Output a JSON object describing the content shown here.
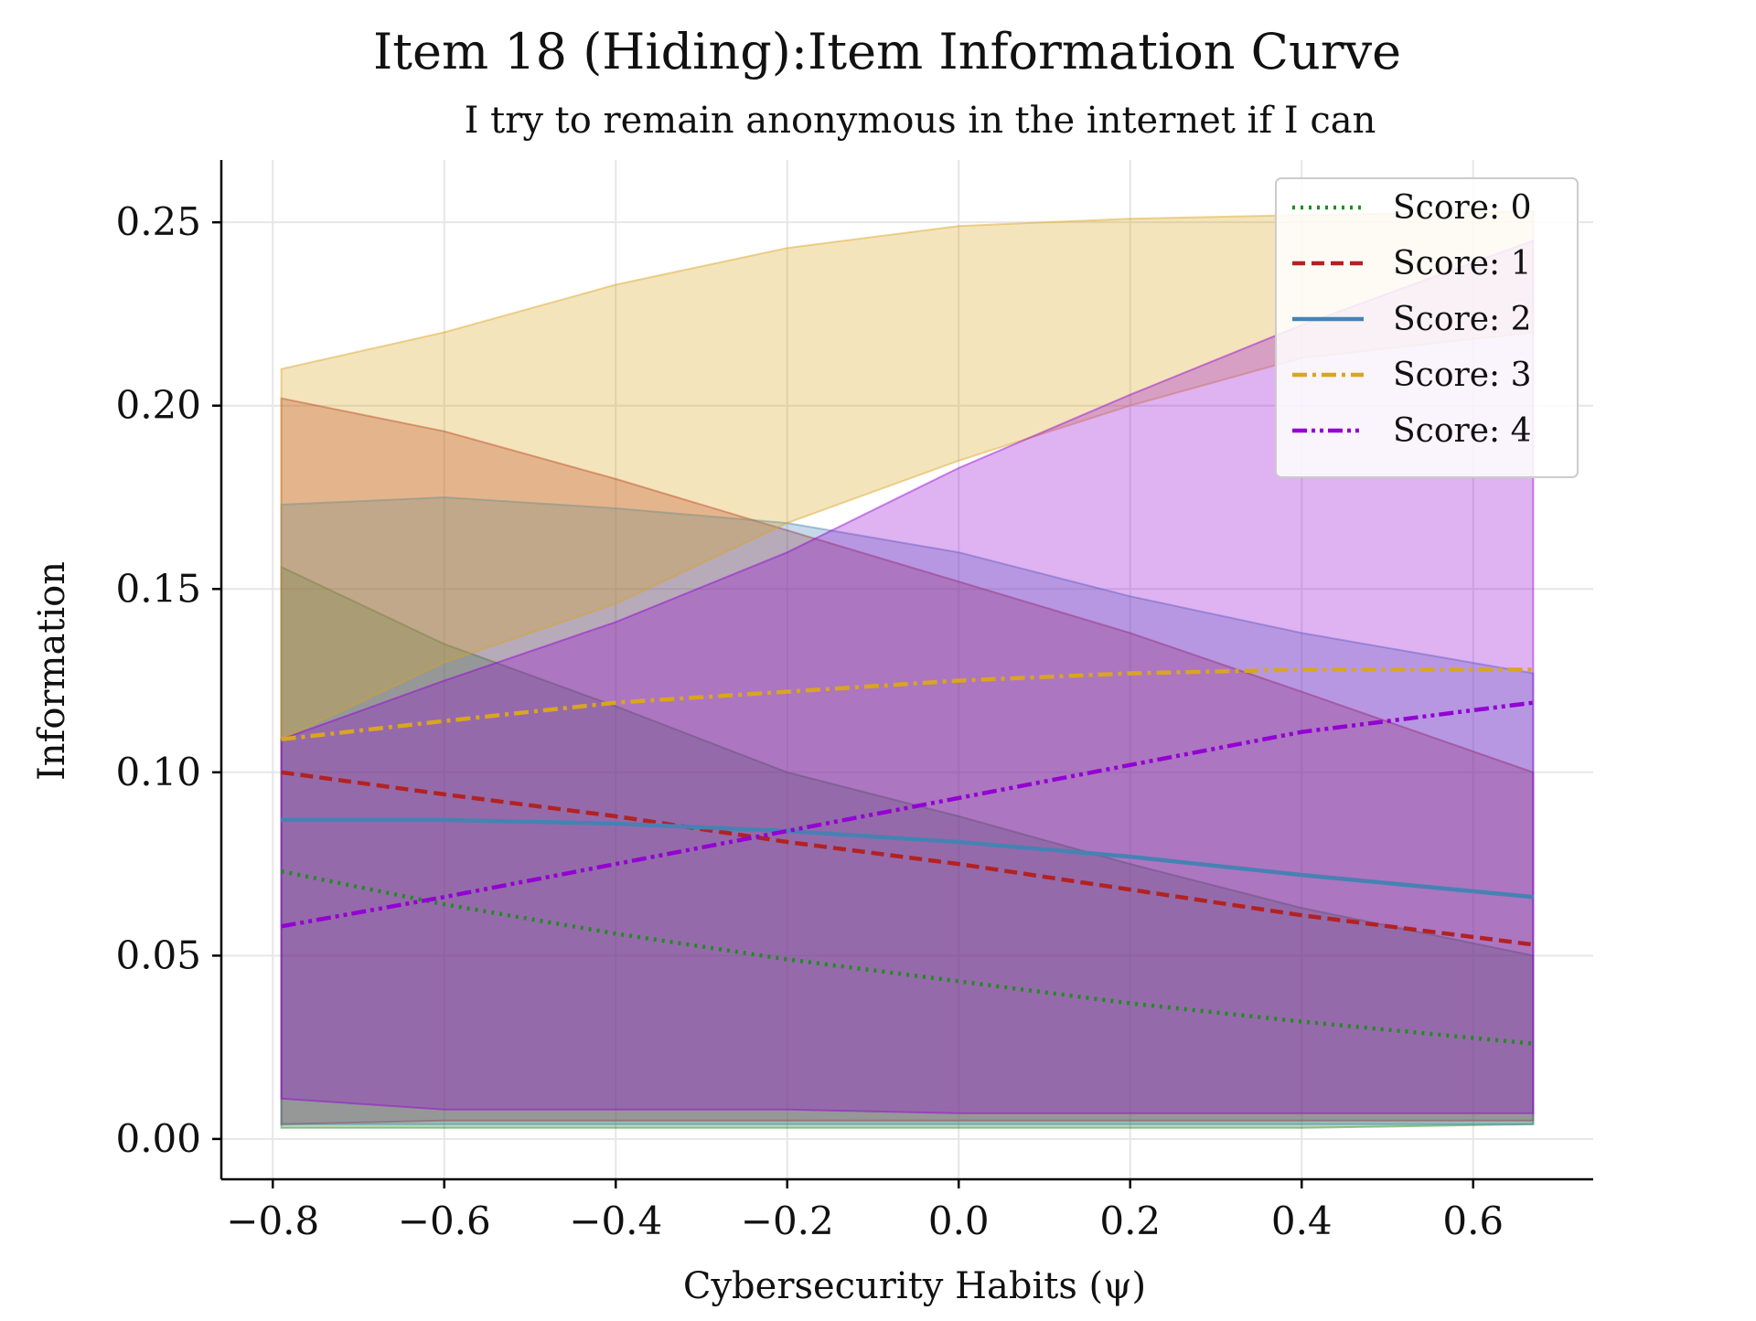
{
  "chart_data": {
    "type": "line",
    "title": "Item 18 (Hiding):Item Information Curve",
    "subtitle": "I try to remain anonymous in the internet if I can",
    "xlabel": "Cybersecurity Habits (ψ)",
    "ylabel": "Information",
    "xlim": [
      -0.86,
      0.74
    ],
    "ylim": [
      -0.011,
      0.267
    ],
    "xticks": [
      -0.8,
      -0.6,
      -0.4,
      -0.2,
      0.0,
      0.2,
      0.4,
      0.6
    ],
    "xtick_labels": [
      "−0.8",
      "−0.6",
      "−0.4",
      "−0.2",
      "0.0",
      "0.2",
      "0.4",
      "0.6"
    ],
    "yticks": [
      0.0,
      0.05,
      0.1,
      0.15,
      0.2,
      0.25
    ],
    "ytick_labels": [
      "0.00",
      "0.05",
      "0.10",
      "0.15",
      "0.20",
      "0.25"
    ],
    "grid": true,
    "legend_position": "top-right",
    "x": [
      -0.79,
      -0.6,
      -0.4,
      -0.2,
      0.0,
      0.2,
      0.4,
      0.67
    ],
    "series": [
      {
        "name": "Score: 0",
        "color": "#228B22",
        "dash": "dotted",
        "values": [
          0.073,
          0.064,
          0.056,
          0.049,
          0.043,
          0.037,
          0.032,
          0.026
        ],
        "band_upper": [
          0.156,
          0.135,
          0.118,
          0.1,
          0.088,
          0.075,
          0.063,
          0.05
        ],
        "band_lower": [
          0.003,
          0.003,
          0.003,
          0.003,
          0.003,
          0.003,
          0.003,
          0.004
        ]
      },
      {
        "name": "Score: 1",
        "color": "#B22222",
        "dash": "dashed",
        "values": [
          0.1,
          0.094,
          0.088,
          0.081,
          0.075,
          0.068,
          0.061,
          0.053
        ],
        "band_upper": [
          0.202,
          0.193,
          0.18,
          0.166,
          0.152,
          0.138,
          0.122,
          0.1
        ],
        "band_lower": [
          0.004,
          0.005,
          0.005,
          0.005,
          0.005,
          0.005,
          0.005,
          0.005
        ]
      },
      {
        "name": "Score: 2",
        "color": "#4682B4",
        "dash": "solid",
        "values": [
          0.087,
          0.087,
          0.086,
          0.084,
          0.081,
          0.077,
          0.072,
          0.066
        ],
        "band_upper": [
          0.173,
          0.175,
          0.172,
          0.168,
          0.16,
          0.148,
          0.138,
          0.127
        ],
        "band_lower": [
          0.004,
          0.004,
          0.004,
          0.004,
          0.004,
          0.004,
          0.004,
          0.004
        ]
      },
      {
        "name": "Score: 3",
        "color": "#DAA520",
        "dash": "dashdot",
        "values": [
          0.109,
          0.114,
          0.119,
          0.122,
          0.125,
          0.127,
          0.128,
          0.128
        ],
        "band_upper": [
          0.21,
          0.22,
          0.233,
          0.243,
          0.249,
          0.251,
          0.252,
          0.253
        ],
        "band_lower": [
          0.109,
          0.13,
          0.146,
          0.168,
          0.185,
          0.2,
          0.213,
          0.22
        ]
      },
      {
        "name": "Score: 4",
        "color": "#9400D3",
        "dash": "dashdotdot",
        "values": [
          0.058,
          0.066,
          0.075,
          0.084,
          0.093,
          0.102,
          0.111,
          0.119
        ],
        "band_upper": [
          0.109,
          0.125,
          0.141,
          0.16,
          0.183,
          0.203,
          0.222,
          0.245
        ],
        "band_lower": [
          0.011,
          0.008,
          0.008,
          0.008,
          0.007,
          0.007,
          0.007,
          0.007
        ]
      }
    ]
  }
}
